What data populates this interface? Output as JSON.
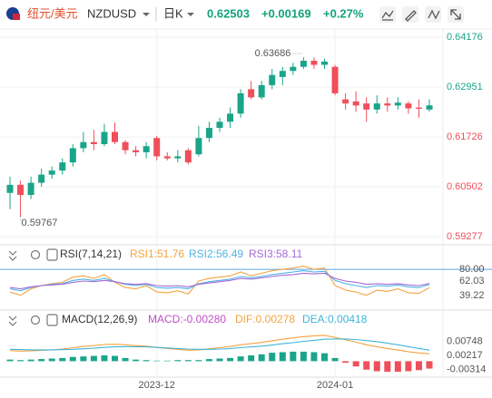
{
  "header": {
    "name": "纽元/美元",
    "symbol": "NZDUSD",
    "period": "日K",
    "price": "0.62503",
    "change": "+0.00169",
    "change_pct": "+0.27%"
  },
  "chart_data": [
    {
      "type": "candlestick",
      "up_color": "#1aa58a",
      "down_color": "#ef4f5a",
      "open": [
        0.6035,
        0.6055,
        0.603,
        0.606,
        0.608,
        0.609,
        0.611,
        0.6145,
        0.616,
        0.6155,
        0.6185,
        0.616,
        0.614,
        0.6135,
        0.617,
        0.6125,
        0.612,
        0.614,
        0.613,
        0.617,
        0.6195,
        0.621,
        0.623,
        0.629,
        0.627,
        0.63,
        0.632,
        0.6335,
        0.6345,
        0.636,
        0.635,
        0.6345,
        0.6265,
        0.626,
        0.6255,
        0.624,
        0.6255,
        0.625,
        0.6255,
        0.6245,
        0.624
      ],
      "high": [
        0.6075,
        0.6065,
        0.6075,
        0.6095,
        0.61,
        0.612,
        0.6155,
        0.6185,
        0.619,
        0.6205,
        0.6208,
        0.6165,
        0.615,
        0.616,
        0.6175,
        0.6135,
        0.614,
        0.6145,
        0.62,
        0.621,
        0.622,
        0.6245,
        0.629,
        0.631,
        0.631,
        0.634,
        0.6345,
        0.6355,
        0.63686,
        0.6368,
        0.6365,
        0.635,
        0.628,
        0.6285,
        0.627,
        0.6275,
        0.627,
        0.627,
        0.626,
        0.6265,
        0.6265
      ],
      "low": [
        0.5995,
        0.59767,
        0.602,
        0.605,
        0.607,
        0.608,
        0.61,
        0.6135,
        0.614,
        0.615,
        0.6155,
        0.613,
        0.6125,
        0.612,
        0.6115,
        0.6115,
        0.611,
        0.6105,
        0.6125,
        0.616,
        0.6185,
        0.6195,
        0.622,
        0.6265,
        0.6265,
        0.629,
        0.63,
        0.6325,
        0.634,
        0.634,
        0.634,
        0.6275,
        0.624,
        0.6235,
        0.621,
        0.623,
        0.6235,
        0.624,
        0.623,
        0.622,
        0.6235
      ],
      "close": [
        0.6055,
        0.603,
        0.606,
        0.608,
        0.609,
        0.611,
        0.6145,
        0.616,
        0.6155,
        0.6185,
        0.616,
        0.614,
        0.6135,
        0.615,
        0.6125,
        0.612,
        0.6125,
        0.611,
        0.617,
        0.6195,
        0.621,
        0.623,
        0.628,
        0.627,
        0.63,
        0.6325,
        0.6335,
        0.6345,
        0.636,
        0.635,
        0.6358,
        0.628,
        0.6255,
        0.625,
        0.624,
        0.6255,
        0.625,
        0.6257,
        0.6243,
        0.6242,
        0.62503
      ],
      "high_label": "0.63686",
      "low_label": "0.59767",
      "ylim": [
        0.5912,
        0.6438
      ],
      "yticks": [
        0.59277,
        0.60502,
        0.61726,
        0.62951,
        0.64176
      ],
      "xticks": [
        {
          "value": 14,
          "label": "2023-12"
        },
        {
          "value": 31,
          "label": "2024-01"
        }
      ]
    },
    {
      "type": "line",
      "title": "RSI(7,14,21)",
      "ylim": [
        20,
        90
      ],
      "yticks": [
        {
          "value": 80,
          "label": "80.00"
        },
        62.03,
        39.22
      ],
      "series": [
        {
          "name": "RSI1:51.76",
          "color": "#f4a340",
          "values": [
            45,
            40,
            50,
            55,
            58,
            60,
            68,
            70,
            66,
            72,
            60,
            52,
            50,
            55,
            45,
            44,
            47,
            42,
            62,
            66,
            68,
            70,
            76,
            70,
            74,
            78,
            80,
            82,
            85,
            80,
            82,
            55,
            48,
            45,
            40,
            48,
            46,
            50,
            44,
            43,
            51.76
          ]
        },
        {
          "name": "RSI2:56.49",
          "color": "#4fb3e0",
          "values": [
            50,
            47,
            52,
            55,
            57,
            58,
            63,
            65,
            63,
            66,
            61,
            57,
            55,
            57,
            52,
            51,
            52,
            50,
            58,
            61,
            63,
            65,
            69,
            67,
            69,
            72,
            74,
            76,
            78,
            76,
            77,
            63,
            58,
            55,
            52,
            55,
            54,
            56,
            53,
            52,
            56.49
          ]
        },
        {
          "name": "RSI3:58.11",
          "color": "#a56ad8",
          "values": [
            52,
            50,
            53,
            55,
            56,
            57,
            60,
            62,
            61,
            63,
            61,
            58,
            57,
            58,
            55,
            54,
            55,
            53,
            57,
            59,
            61,
            63,
            66,
            65,
            67,
            69,
            71,
            72,
            74,
            73,
            74,
            66,
            62,
            60,
            57,
            58,
            57,
            58,
            56,
            55,
            58.11
          ]
        }
      ]
    },
    {
      "type": "macd",
      "title": "MACD(12,26,9)",
      "ylim": [
        -0.0057,
        0.0166
      ],
      "yticks": [
        -0.00314,
        0.00217,
        0.00748
      ],
      "series": [
        {
          "name": "MACD:-0.00280",
          "color": "#c04fc8",
          "up_color": "#1aa58a",
          "down_color": "#ef4f5a",
          "values": [
            0.0006,
            0.0004,
            0.0006,
            0.0008,
            0.001,
            0.0012,
            0.0016,
            0.0018,
            0.002,
            0.0022,
            0.002,
            0.0012,
            0.0006,
            0.0004,
            0.0002,
            0.0002,
            0.0004,
            0.0004,
            0.0004,
            0.0008,
            0.001,
            0.0012,
            0.0018,
            0.0022,
            0.0026,
            0.0032,
            0.0034,
            0.0036,
            0.0036,
            0.0034,
            0.003,
            0.0012,
            -0.0006,
            -0.002,
            -0.0032,
            -0.0038,
            -0.004,
            -0.004,
            -0.0038,
            -0.0034,
            -0.0028
          ]
        },
        {
          "name": "DIF:0.00278",
          "color": "#f4a340",
          "values": [
            0.004,
            0.0038,
            0.0039,
            0.0041,
            0.0043,
            0.0046,
            0.0051,
            0.0056,
            0.0059,
            0.0063,
            0.0064,
            0.0062,
            0.0059,
            0.0057,
            0.0052,
            0.0048,
            0.0045,
            0.0041,
            0.0043,
            0.0047,
            0.0051,
            0.0056,
            0.0062,
            0.0066,
            0.0071,
            0.0077,
            0.0083,
            0.0088,
            0.0093,
            0.0096,
            0.0098,
            0.009,
            0.0081,
            0.0072,
            0.0062,
            0.0055,
            0.0048,
            0.0042,
            0.0036,
            0.0031,
            0.00278
          ]
        },
        {
          "name": "DEA:0.00418",
          "color": "#3fb6d9",
          "values": [
            0.0045,
            0.0044,
            0.0043,
            0.0043,
            0.0043,
            0.0044,
            0.0045,
            0.0047,
            0.0049,
            0.0052,
            0.0054,
            0.0055,
            0.0055,
            0.0054,
            0.0052,
            0.005,
            0.0048,
            0.0046,
            0.0045,
            0.0045,
            0.0046,
            0.0048,
            0.0051,
            0.0054,
            0.0057,
            0.0061,
            0.0066,
            0.007,
            0.0075,
            0.0079,
            0.0083,
            0.0084,
            0.0084,
            0.0082,
            0.0078,
            0.0074,
            0.0068,
            0.0062,
            0.0055,
            0.0048,
            0.00418
          ]
        }
      ]
    }
  ]
}
